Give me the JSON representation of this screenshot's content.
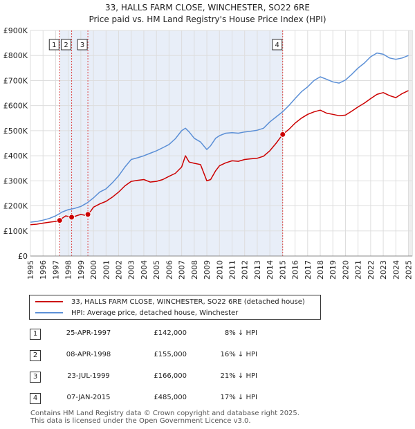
{
  "chart_data": {
    "type": "line",
    "title": "33, HALLS FARM CLOSE, WINCHESTER, SO22 6RE",
    "subtitle": "Price paid vs. HM Land Registry's House Price Index (HPI)",
    "xlim": [
      1995,
      2025.3
    ],
    "ylim": [
      0,
      900000
    ],
    "x_ticks": [
      "1995",
      "1996",
      "1997",
      "1998",
      "1999",
      "2000",
      "2001",
      "2002",
      "2003",
      "2004",
      "2005",
      "2006",
      "2007",
      "2008",
      "2009",
      "2010",
      "2011",
      "2012",
      "2013",
      "2014",
      "2015",
      "2016",
      "2017",
      "2018",
      "2019",
      "2020",
      "2021",
      "2022",
      "2023",
      "2024",
      "2025"
    ],
    "y_ticks": [
      {
        "value": 0,
        "label": "£0"
      },
      {
        "value": 100000,
        "label": "£100K"
      },
      {
        "value": 200000,
        "label": "£200K"
      },
      {
        "value": 300000,
        "label": "£300K"
      },
      {
        "value": 400000,
        "label": "£400K"
      },
      {
        "value": 500000,
        "label": "£500K"
      },
      {
        "value": 600000,
        "label": "£600K"
      },
      {
        "value": 700000,
        "label": "£700K"
      },
      {
        "value": 800000,
        "label": "£800K"
      },
      {
        "value": 900000,
        "label": "£900K"
      }
    ],
    "grid": true,
    "series": [
      {
        "name": "33, HALLS FARM CLOSE, WINCHESTER, SO22 6RE (detached house)",
        "color": "#cc0000",
        "x": [
          1995.0,
          1995.5,
          1996.0,
          1996.5,
          1997.0,
          1997.32,
          1997.5,
          1997.8,
          1998.0,
          1998.27,
          1998.5,
          1998.8,
          1999.0,
          1999.3,
          1999.56,
          1999.8,
          2000.0,
          2000.5,
          2001.0,
          2001.5,
          2002.0,
          2002.5,
          2003.0,
          2003.5,
          2004.0,
          2004.5,
          2005.0,
          2005.5,
          2006.0,
          2006.5,
          2007.0,
          2007.3,
          2007.6,
          2008.0,
          2008.5,
          2009.0,
          2009.3,
          2009.7,
          2010.0,
          2010.5,
          2011.0,
          2011.5,
          2012.0,
          2012.5,
          2013.0,
          2013.5,
          2014.0,
          2014.5,
          2015.02,
          2015.5,
          2016.0,
          2016.5,
          2017.0,
          2017.5,
          2018.0,
          2018.5,
          2019.0,
          2019.5,
          2020.0,
          2020.5,
          2021.0,
          2021.5,
          2022.0,
          2022.5,
          2023.0,
          2023.5,
          2024.0,
          2024.5,
          2025.0
        ],
        "values": [
          125000,
          127000,
          131000,
          135000,
          138000,
          142000,
          150000,
          160000,
          158000,
          155000,
          158000,
          163000,
          166000,
          163000,
          166000,
          180000,
          195000,
          208000,
          218000,
          235000,
          255000,
          280000,
          298000,
          302000,
          305000,
          295000,
          298000,
          305000,
          318000,
          330000,
          355000,
          400000,
          375000,
          370000,
          365000,
          300000,
          305000,
          340000,
          360000,
          372000,
          380000,
          378000,
          385000,
          388000,
          390000,
          398000,
          420000,
          450000,
          485000,
          505000,
          530000,
          550000,
          565000,
          575000,
          582000,
          570000,
          565000,
          560000,
          562000,
          578000,
          595000,
          610000,
          628000,
          645000,
          652000,
          640000,
          632000,
          648000,
          660000
        ]
      },
      {
        "name": "HPI: Average price, detached house, Winchester",
        "color": "#5b8fd6",
        "x": [
          1995.0,
          1995.5,
          1996.0,
          1996.5,
          1997.0,
          1997.5,
          1998.0,
          1998.5,
          1999.0,
          1999.5,
          2000.0,
          2000.5,
          2001.0,
          2001.5,
          2002.0,
          2002.5,
          2003.0,
          2003.5,
          2004.0,
          2004.5,
          2005.0,
          2005.5,
          2006.0,
          2006.5,
          2007.0,
          2007.3,
          2007.6,
          2008.0,
          2008.5,
          2009.0,
          2009.3,
          2009.7,
          2010.0,
          2010.5,
          2011.0,
          2011.5,
          2012.0,
          2012.5,
          2013.0,
          2013.5,
          2014.0,
          2014.5,
          2015.0,
          2015.5,
          2016.0,
          2016.5,
          2017.0,
          2017.5,
          2018.0,
          2018.5,
          2019.0,
          2019.5,
          2020.0,
          2020.5,
          2021.0,
          2021.5,
          2022.0,
          2022.5,
          2023.0,
          2023.5,
          2024.0,
          2024.5,
          2025.0
        ],
        "values": [
          135000,
          138000,
          143000,
          150000,
          160000,
          175000,
          185000,
          190000,
          198000,
          212000,
          232000,
          255000,
          268000,
          292000,
          320000,
          355000,
          385000,
          392000,
          400000,
          410000,
          420000,
          432000,
          445000,
          468000,
          500000,
          510000,
          495000,
          470000,
          455000,
          425000,
          440000,
          470000,
          480000,
          490000,
          492000,
          490000,
          495000,
          498000,
          502000,
          510000,
          535000,
          555000,
          575000,
          600000,
          628000,
          655000,
          675000,
          700000,
          715000,
          705000,
          695000,
          690000,
          702000,
          725000,
          750000,
          770000,
          795000,
          810000,
          805000,
          790000,
          785000,
          790000,
          800000
        ]
      }
    ],
    "sales": [
      {
        "id": "1",
        "year": 1997.32,
        "price": 142000
      },
      {
        "id": "2",
        "year": 1998.27,
        "price": 155000
      },
      {
        "id": "3",
        "year": 1999.56,
        "price": 166000
      },
      {
        "id": "4",
        "year": 2015.02,
        "price": 485000
      }
    ]
  },
  "legend": {
    "property_label": "33, HALLS FARM CLOSE, WINCHESTER, SO22 6RE (detached house)",
    "hpi_label": "HPI: Average price, detached house, Winchester",
    "property_color": "#cc0000",
    "hpi_color": "#5b8fd6"
  },
  "transactions": [
    {
      "id": "1",
      "date": "25-APR-1997",
      "price": "£142,000",
      "hpi": "8% ↓ HPI"
    },
    {
      "id": "2",
      "date": "08-APR-1998",
      "price": "£155,000",
      "hpi": "16% ↓ HPI"
    },
    {
      "id": "3",
      "date": "23-JUL-1999",
      "price": "£166,000",
      "hpi": "21% ↓ HPI"
    },
    {
      "id": "4",
      "date": "07-JAN-2015",
      "price": "£485,000",
      "hpi": "17% ↓ HPI"
    }
  ],
  "footer": {
    "line1": "Contains HM Land Registry data © Crown copyright and database right 2025.",
    "line2": "This data is licensed under the Open Government Licence v3.0."
  }
}
